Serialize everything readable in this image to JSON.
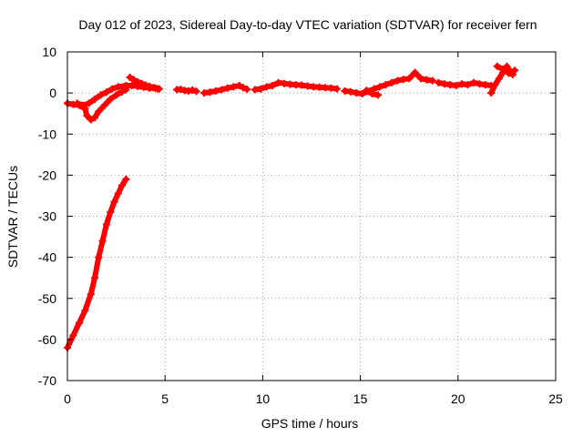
{
  "chart_data": {
    "type": "scatter",
    "title": "Day 012 of 2023, Sidereal Day-to-day VTEC variation (SDTVAR) for receiver fern",
    "xlabel": "GPS time / hours",
    "ylabel": "SDTVAR / TECUs",
    "xlim": [
      0,
      25
    ],
    "ylim": [
      -70,
      10
    ],
    "x_ticks": [
      0,
      5,
      10,
      15,
      20,
      25
    ],
    "y_ticks": [
      10,
      0,
      -10,
      -20,
      -30,
      -40,
      -50,
      -60,
      -70
    ],
    "grid": true,
    "marker": "+",
    "series": [
      {
        "name": "SDTVAR",
        "color": "#ff0000",
        "segments": [
          [
            [
              0.0,
              -62.0
            ],
            [
              0.3,
              -59.0
            ],
            [
              0.6,
              -56.0
            ],
            [
              0.9,
              -53.0
            ],
            [
              1.2,
              -49.0
            ],
            [
              1.4,
              -45.0
            ],
            [
              1.6,
              -40.0
            ],
            [
              1.8,
              -36.0
            ],
            [
              2.0,
              -32.0
            ],
            [
              2.2,
              -29.0
            ],
            [
              2.4,
              -26.5
            ],
            [
              2.6,
              -24.5
            ],
            [
              2.8,
              -22.5
            ],
            [
              3.0,
              -21.0
            ]
          ],
          [
            [
              0.0,
              -2.5
            ],
            [
              0.3,
              -2.8
            ],
            [
              0.6,
              -3.0
            ],
            [
              0.9,
              -3.8
            ],
            [
              1.0,
              -5.5
            ],
            [
              1.2,
              -6.5
            ],
            [
              1.4,
              -6.0
            ],
            [
              1.6,
              -4.5
            ],
            [
              1.9,
              -3.0
            ],
            [
              2.2,
              -1.5
            ],
            [
              2.5,
              -0.5
            ],
            [
              2.8,
              0.3
            ],
            [
              3.0,
              0.8
            ]
          ],
          [
            [
              0.5,
              -2.5
            ],
            [
              0.8,
              -3.0
            ],
            [
              1.1,
              -2.5
            ],
            [
              1.4,
              -1.5
            ],
            [
              1.7,
              -0.5
            ],
            [
              2.0,
              0.2
            ],
            [
              2.3,
              1.0
            ],
            [
              2.6,
              1.5
            ],
            [
              3.0,
              1.8
            ],
            [
              3.3,
              1.8
            ],
            [
              3.6,
              1.6
            ],
            [
              3.9,
              1.4
            ],
            [
              4.2,
              1.2
            ],
            [
              4.5,
              1.2
            ],
            [
              4.7,
              1.0
            ]
          ],
          [
            [
              3.2,
              3.8
            ],
            [
              3.4,
              3.2
            ],
            [
              3.6,
              2.7
            ],
            [
              3.8,
              2.3
            ],
            [
              4.0,
              1.9
            ],
            [
              4.2,
              1.6
            ],
            [
              4.4,
              1.3
            ],
            [
              4.6,
              1.0
            ]
          ],
          [
            [
              5.6,
              0.8
            ],
            [
              5.8,
              0.9
            ],
            [
              6.0,
              0.6
            ],
            [
              6.2,
              0.5
            ],
            [
              6.4,
              0.7
            ],
            [
              6.6,
              0.4
            ]
          ],
          [
            [
              7.0,
              0.0
            ],
            [
              7.3,
              0.2
            ],
            [
              7.6,
              0.5
            ],
            [
              7.9,
              0.8
            ],
            [
              8.2,
              1.2
            ],
            [
              8.5,
              1.5
            ],
            [
              8.8,
              1.8
            ],
            [
              9.0,
              1.3
            ],
            [
              9.2,
              0.9
            ]
          ],
          [
            [
              9.6,
              0.8
            ],
            [
              9.9,
              1.0
            ],
            [
              10.2,
              1.5
            ],
            [
              10.5,
              1.8
            ],
            [
              10.8,
              2.5
            ],
            [
              11.1,
              2.3
            ],
            [
              11.4,
              2.1
            ],
            [
              11.7,
              2.0
            ],
            [
              12.0,
              1.9
            ],
            [
              12.3,
              1.7
            ],
            [
              12.6,
              1.5
            ],
            [
              12.9,
              1.4
            ],
            [
              13.2,
              1.3
            ],
            [
              13.5,
              1.2
            ],
            [
              13.8,
              1.0
            ]
          ],
          [
            [
              14.2,
              0.5
            ],
            [
              14.5,
              0.3
            ],
            [
              14.8,
              0.0
            ],
            [
              15.1,
              -0.2
            ],
            [
              15.4,
              0.4
            ],
            [
              15.7,
              1.0
            ],
            [
              16.0,
              1.5
            ],
            [
              16.3,
              2.0
            ],
            [
              16.6,
              2.5
            ],
            [
              16.9,
              3.0
            ],
            [
              17.2,
              3.3
            ],
            [
              17.5,
              3.5
            ],
            [
              17.8,
              5.0
            ],
            [
              18.1,
              3.5
            ],
            [
              18.4,
              3.2
            ],
            [
              18.7,
              3.0
            ]
          ],
          [
            [
              15.3,
              0.6
            ],
            [
              15.6,
              -0.2
            ],
            [
              15.9,
              -0.5
            ]
          ],
          [
            [
              19.0,
              2.5
            ],
            [
              19.3,
              2.2
            ],
            [
              19.6,
              2.0
            ],
            [
              19.9,
              1.8
            ],
            [
              20.2,
              2.2
            ],
            [
              20.5,
              2.0
            ],
            [
              20.8,
              2.5
            ],
            [
              21.1,
              2.2
            ],
            [
              21.4,
              2.0
            ],
            [
              21.7,
              1.8
            ]
          ],
          [
            [
              21.7,
              0.0
            ],
            [
              21.9,
              2.0
            ],
            [
              22.1,
              3.5
            ],
            [
              22.3,
              5.0
            ],
            [
              22.5,
              6.5
            ],
            [
              22.7,
              5.0
            ],
            [
              22.9,
              5.5
            ]
          ],
          [
            [
              22.0,
              6.5
            ],
            [
              22.3,
              5.8
            ],
            [
              22.6,
              4.8
            ],
            [
              22.8,
              4.5
            ]
          ]
        ]
      }
    ]
  }
}
